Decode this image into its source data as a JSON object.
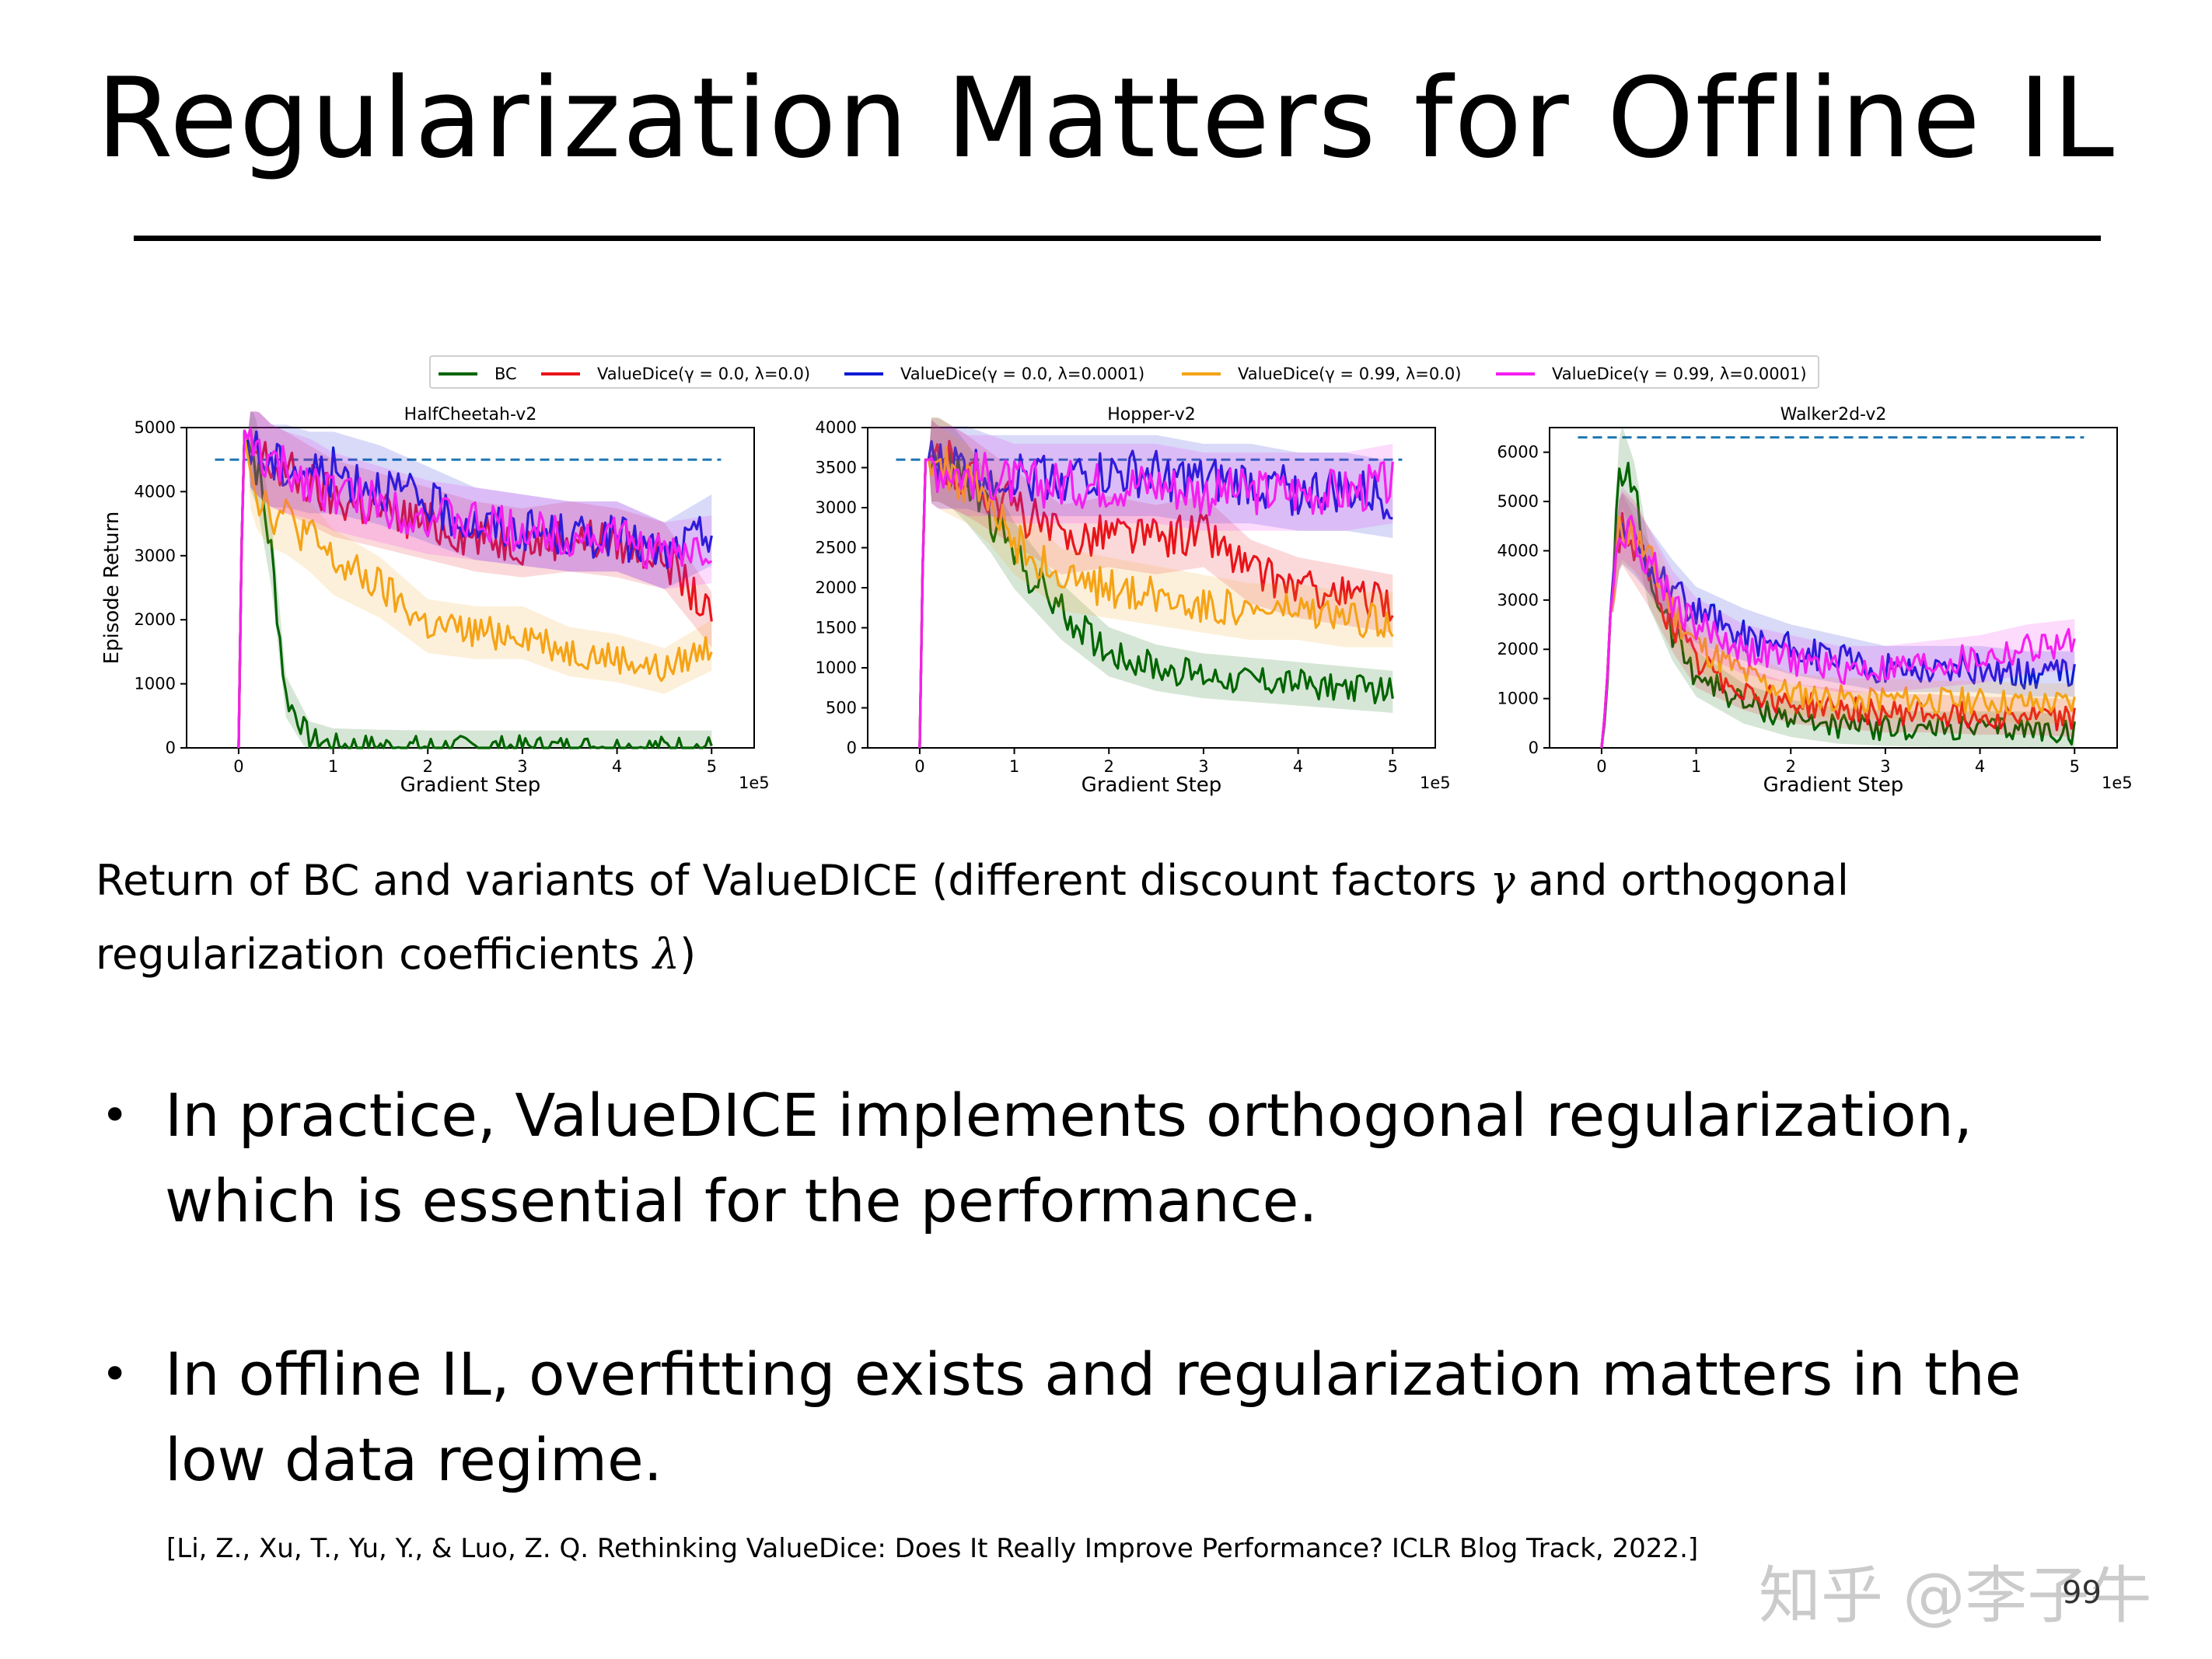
{
  "slide": {
    "title": "Regularization Matters for Offline IL",
    "caption_part1": "Return of BC and variants of ValueDICE (different discount factors ",
    "caption_gamma": "γ",
    "caption_part2": " and orthogonal regularization coefficients ",
    "caption_lambda": "λ",
    "caption_part3": ")",
    "bullets": [
      "In practice, ValueDICE implements orthogonal regularization, which is essential for the performance.",
      "In offline IL, overfitting exists and regularization matters in the low data regime."
    ],
    "bullet_glyph": "•",
    "reference": "[Li, Z.,  Xu, T., Yu, Y., & Luo, Z. Q. Rethinking ValueDice: Does It Really Improve Performance? ICLR Blog Track, 2022.]",
    "page_number": "99",
    "watermark": "知乎 @李子牛"
  },
  "legend": [
    {
      "name": "BC",
      "color": "#006400"
    },
    {
      "name": "ValueDice(γ = 0.0, λ=0.0)",
      "color": "#e8141a"
    },
    {
      "name": "ValueDice(γ = 0.0, λ=0.0001)",
      "color": "#0a1bd6"
    },
    {
      "name": "ValueDice(γ = 0.99, λ=0.0)",
      "color": "#f5a316"
    },
    {
      "name": "ValueDice(γ = 0.99, λ=0.0001)",
      "color": "#f51ff0"
    }
  ],
  "chart_data": [
    {
      "type": "line",
      "title": "HalfCheetah-v2",
      "xlabel": "Gradient Step",
      "ylabel": "Episode Return",
      "x_scale_label": "1e5",
      "xlim": [
        -0.55,
        5.45
      ],
      "ylim": [
        0,
        5000
      ],
      "xticks": [
        0,
        1,
        2,
        3,
        4,
        5
      ],
      "yticks": [
        0,
        1000,
        2000,
        3000,
        4000,
        5000
      ],
      "expert_level": 4500,
      "x": [
        0,
        0.05,
        0.1,
        0.2,
        0.35,
        0.5,
        0.75,
        1.0,
        1.5,
        2.0,
        2.5,
        3.0,
        3.5,
        4.0,
        4.5,
        5.0
      ],
      "series": [
        {
          "name": "BC",
          "color": "#006400",
          "values": [
            0,
            5000,
            4800,
            4400,
            3000,
            800,
            150,
            50,
            30,
            20,
            20,
            20,
            20,
            20,
            20,
            20
          ]
        },
        {
          "name": "ValueDice(γ = 0.0, λ=0.0)",
          "color": "#e8141a",
          "values": [
            0,
            5000,
            4800,
            4600,
            4400,
            4300,
            4100,
            3900,
            3700,
            3500,
            3300,
            3200,
            3300,
            3200,
            3000,
            2000
          ]
        },
        {
          "name": "ValueDice(γ = 0.0, λ=0.0001)",
          "color": "#0a1bd6",
          "values": [
            0,
            5000,
            4800,
            4600,
            4400,
            4400,
            4300,
            4300,
            4100,
            3800,
            3500,
            3400,
            3300,
            3300,
            3000,
            3400
          ]
        },
        {
          "name": "ValueDice(γ = 0.99, λ=0.0)",
          "color": "#f5a316",
          "values": [
            0,
            5000,
            4500,
            4000,
            3700,
            3600,
            3300,
            2900,
            2500,
            1900,
            1800,
            1800,
            1500,
            1400,
            1200,
            1600
          ]
        },
        {
          "name": "ValueDice(γ = 0.99, λ=0.0001)",
          "color": "#f51ff0",
          "values": [
            0,
            5000,
            4800,
            4600,
            4400,
            4300,
            4200,
            4000,
            3800,
            3600,
            3500,
            3400,
            3300,
            3300,
            3000,
            3100
          ]
        }
      ]
    },
    {
      "type": "line",
      "title": "Hopper-v2",
      "xlabel": "Gradient Step",
      "ylabel": "",
      "x_scale_label": "1e5",
      "xlim": [
        -0.55,
        5.45
      ],
      "ylim": [
        0,
        4000
      ],
      "xticks": [
        0,
        1,
        2,
        3,
        4,
        5
      ],
      "yticks": [
        0,
        500,
        1000,
        1500,
        2000,
        2500,
        3000,
        3500,
        4000
      ],
      "expert_level": 3600,
      "x": [
        0,
        0.05,
        0.1,
        0.2,
        0.35,
        0.5,
        0.75,
        1.0,
        1.5,
        2.0,
        2.5,
        3.0,
        3.5,
        4.0,
        4.5,
        5.0
      ],
      "series": [
        {
          "name": "BC",
          "color": "#006400",
          "values": [
            0,
            3600,
            3600,
            3600,
            3500,
            3300,
            2900,
            2400,
            1700,
            1200,
            1000,
            900,
            850,
            800,
            750,
            700
          ]
        },
        {
          "name": "ValueDice(γ = 0.0, λ=0.0)",
          "color": "#e8141a",
          "values": [
            0,
            3600,
            3600,
            3600,
            3500,
            3400,
            3200,
            3000,
            2600,
            2700,
            2600,
            2700,
            2200,
            2000,
            1900,
            1800
          ]
        },
        {
          "name": "ValueDice(γ = 0.0, λ=0.0001)",
          "color": "#0a1bd6",
          "values": [
            0,
            3600,
            3600,
            3500,
            3500,
            3500,
            3400,
            3400,
            3400,
            3400,
            3400,
            3300,
            3300,
            3200,
            3200,
            3100
          ]
        },
        {
          "name": "ValueDice(γ = 0.99, λ=0.0)",
          "color": "#f5a316",
          "values": [
            0,
            3600,
            3600,
            3500,
            3400,
            3300,
            3000,
            2600,
            2100,
            2000,
            1900,
            1800,
            1700,
            1700,
            1600,
            1600
          ]
        },
        {
          "name": "ValueDice(γ = 0.99, λ=0.0001)",
          "color": "#f51ff0",
          "values": [
            0,
            3600,
            3600,
            3500,
            3500,
            3400,
            3400,
            3300,
            3300,
            3300,
            3300,
            3200,
            3200,
            3200,
            3200,
            3300
          ]
        }
      ]
    },
    {
      "type": "line",
      "title": "Walker2d-v2",
      "xlabel": "Gradient Step",
      "ylabel": "",
      "x_scale_label": "1e5",
      "xlim": [
        -0.55,
        5.45
      ],
      "ylim": [
        0,
        6500
      ],
      "xticks": [
        0,
        1,
        2,
        3,
        4,
        5
      ],
      "yticks": [
        0,
        1000,
        2000,
        3000,
        4000,
        5000,
        6000
      ],
      "expert_level": 6300,
      "x": [
        0,
        0.05,
        0.1,
        0.2,
        0.35,
        0.5,
        0.75,
        1.0,
        1.5,
        2.0,
        2.5,
        3.0,
        3.5,
        4.0,
        4.5,
        5.0
      ],
      "series": [
        {
          "name": "BC",
          "color": "#006400",
          "values": [
            0,
            800,
            3000,
            5800,
            5000,
            3500,
            2300,
            1500,
            900,
            600,
            450,
            400,
            380,
            380,
            380,
            300
          ]
        },
        {
          "name": "ValueDice(γ = 0.0, λ=0.0)",
          "color": "#e8141a",
          "values": [
            0,
            1000,
            3000,
            4500,
            4000,
            3500,
            2500,
            1700,
            1200,
            900,
            800,
            700,
            700,
            650,
            650,
            600
          ]
        },
        {
          "name": "ValueDice(γ = 0.0, λ=0.0001)",
          "color": "#0a1bd6",
          "values": [
            0,
            1000,
            3000,
            4500,
            4200,
            3800,
            3200,
            2700,
            2300,
            2000,
            1800,
            1600,
            1600,
            1600,
            1500,
            1500
          ]
        },
        {
          "name": "ValueDice(γ = 0.99, λ=0.0)",
          "color": "#f5a316",
          "values": [
            0,
            1000,
            3000,
            4500,
            4300,
            3800,
            2800,
            2100,
            1500,
            1100,
            1000,
            1000,
            950,
            950,
            900,
            900
          ]
        },
        {
          "name": "ValueDice(γ = 0.99, λ=0.0001)",
          "color": "#f51ff0",
          "values": [
            0,
            1000,
            3000,
            4600,
            4300,
            3800,
            3000,
            2500,
            2000,
            1800,
            1600,
            1600,
            1700,
            1800,
            2000,
            2100
          ]
        }
      ]
    }
  ]
}
